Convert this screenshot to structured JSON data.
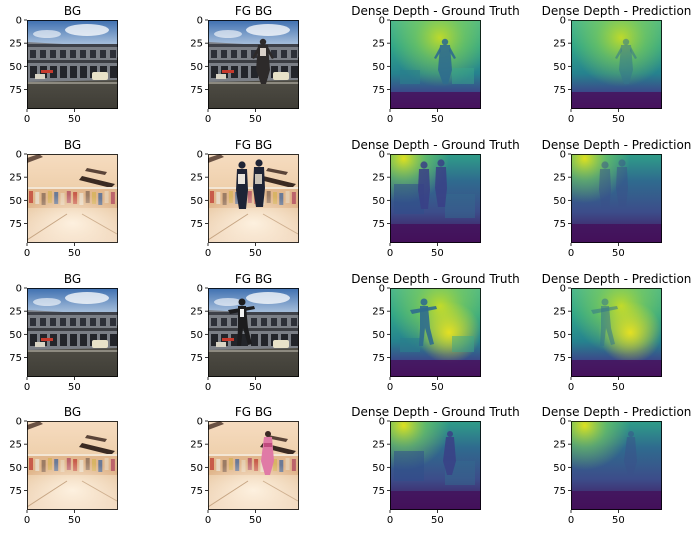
{
  "figure": {
    "rows": [
      {
        "panels": [
          {
            "title": "BG",
            "kind": "photo-street",
            "foreground": "none"
          },
          {
            "title": "FG BG",
            "kind": "photo-street",
            "foreground": "standing-person"
          },
          {
            "title": "Dense Depth - Ground Truth",
            "kind": "depth-street-gt",
            "foreground": "standing-person"
          },
          {
            "title": "Dense Depth - Prediction",
            "kind": "depth-street-pred",
            "foreground": "standing-person"
          }
        ]
      },
      {
        "panels": [
          {
            "title": "BG",
            "kind": "photo-mall",
            "foreground": "none"
          },
          {
            "title": "FG BG",
            "kind": "photo-mall",
            "foreground": "two-people"
          },
          {
            "title": "Dense Depth - Ground Truth",
            "kind": "depth-mall-gt",
            "foreground": "two-people"
          },
          {
            "title": "Dense Depth - Prediction",
            "kind": "depth-mall-pred",
            "foreground": "two-people"
          }
        ]
      },
      {
        "panels": [
          {
            "title": "BG",
            "kind": "photo-street",
            "foreground": "none"
          },
          {
            "title": "FG BG",
            "kind": "photo-street",
            "foreground": "dancing-person"
          },
          {
            "title": "Dense Depth - Ground Truth",
            "kind": "depth-street-gt",
            "foreground": "dancing-person"
          },
          {
            "title": "Dense Depth - Prediction",
            "kind": "depth-street-pred",
            "foreground": "dancing-person"
          }
        ]
      },
      {
        "panels": [
          {
            "title": "BG",
            "kind": "photo-mall",
            "foreground": "none"
          },
          {
            "title": "FG BG",
            "kind": "photo-mall",
            "foreground": "woman-pink"
          },
          {
            "title": "Dense Depth - Ground Truth",
            "kind": "depth-mall-gt",
            "foreground": "woman-pink"
          },
          {
            "title": "Dense Depth - Prediction",
            "kind": "depth-mall-pred",
            "foreground": "woman-pink"
          }
        ]
      }
    ],
    "x_ticks": [
      "0",
      "50"
    ],
    "y_ticks": [
      "0",
      "25",
      "50",
      "75"
    ],
    "x_tick_values": [
      0,
      50
    ],
    "y_tick_values": [
      0,
      25,
      50,
      75
    ],
    "image_extent": 96,
    "colormap": "viridis"
  }
}
